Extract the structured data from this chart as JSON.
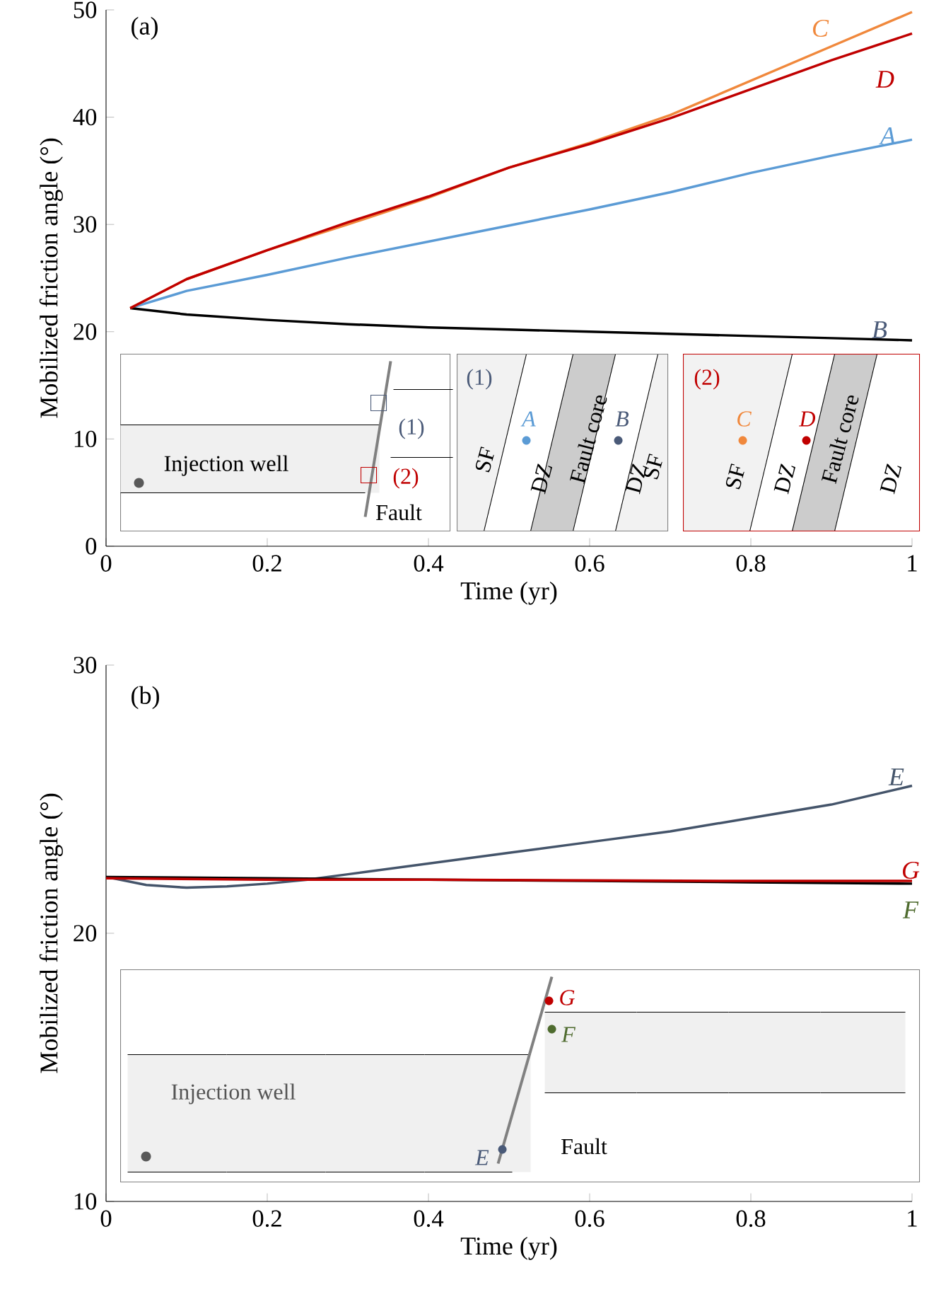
{
  "chart_data": [
    {
      "type": "line",
      "title": "(a)",
      "xlabel": "Time (yr)",
      "ylabel": "Mobilized friction angle (°)",
      "xlim": [
        0,
        1
      ],
      "ylim": [
        0,
        50
      ],
      "xticks": [
        0,
        0.2,
        0.4,
        0.6,
        0.8,
        1
      ],
      "yticks": [
        0,
        10,
        20,
        30,
        40,
        50
      ],
      "series": [
        {
          "name": "A",
          "color": "#5b9bd5",
          "x": [
            0.03,
            0.1,
            0.2,
            0.3,
            0.4,
            0.5,
            0.6,
            0.7,
            0.8,
            0.9,
            1.0
          ],
          "values": [
            22.2,
            23.8,
            25.3,
            26.9,
            28.4,
            29.9,
            31.4,
            33,
            34.8,
            36.4,
            37.9
          ]
        },
        {
          "name": "B",
          "color": "#000000",
          "x": [
            0.03,
            0.1,
            0.2,
            0.3,
            0.4,
            0.5,
            0.6,
            0.7,
            0.8,
            0.9,
            1.0
          ],
          "values": [
            22.2,
            21.6,
            21.1,
            20.7,
            20.4,
            20.2,
            20.0,
            19.8,
            19.6,
            19.4,
            19.2
          ]
        },
        {
          "name": "C",
          "color": "#f0883c",
          "x": [
            0.03,
            0.1,
            0.2,
            0.3,
            0.4,
            0.5,
            0.6,
            0.7,
            0.8,
            0.9,
            1.0
          ],
          "values": [
            22.2,
            24.9,
            27.6,
            30,
            32.5,
            35.3,
            37.6,
            40.2,
            43.4,
            46.6,
            49.8
          ]
        },
        {
          "name": "D",
          "color": "#c00000",
          "x": [
            0.03,
            0.1,
            0.2,
            0.3,
            0.4,
            0.5,
            0.6,
            0.7,
            0.8,
            0.9,
            1.0
          ],
          "values": [
            22.2,
            24.9,
            27.6,
            30.2,
            32.6,
            35.3,
            37.5,
            39.9,
            42.6,
            45.3,
            47.8
          ]
        }
      ],
      "annotations": [
        "(1)",
        "Injection well",
        "Fault",
        "(2)",
        "(1)",
        "SF",
        "DZ",
        "Fault core",
        "DZ",
        "SF",
        "(2)",
        "SF",
        "DZ",
        "Fault core",
        "DZ",
        "A",
        "B",
        "C",
        "D"
      ]
    },
    {
      "type": "line",
      "title": "(b)",
      "xlabel": "Time (yr)",
      "ylabel": "Mobilized friction angle (°)",
      "xlim": [
        0,
        1
      ],
      "ylim": [
        10,
        30
      ],
      "xticks": [
        0,
        0.2,
        0.4,
        0.6,
        0.8,
        1
      ],
      "yticks": [
        10,
        20,
        30
      ],
      "series": [
        {
          "name": "E",
          "color": "#44546a",
          "x": [
            0,
            0.05,
            0.1,
            0.15,
            0.2,
            0.25,
            0.3,
            0.4,
            0.5,
            0.6,
            0.7,
            0.8,
            0.9,
            1.0
          ],
          "values": [
            22.1,
            21.8,
            21.7,
            21.75,
            21.85,
            22.0,
            22.2,
            22.6,
            23.0,
            23.4,
            23.8,
            24.3,
            24.8,
            25.5
          ]
        },
        {
          "name": "F",
          "color": "#000000",
          "x": [
            0,
            0.2,
            0.4,
            0.6,
            0.8,
            1.0
          ],
          "values": [
            22.1,
            22.05,
            22.0,
            21.95,
            21.9,
            21.85
          ]
        },
        {
          "name": "G",
          "color": "#c00000",
          "x": [
            0,
            0.2,
            0.4,
            0.6,
            0.8,
            1.0
          ],
          "values": [
            22.05,
            22.0,
            22.0,
            21.97,
            21.95,
            21.95
          ]
        }
      ],
      "annotations": [
        "Injection well",
        "Fault",
        "E",
        "G",
        "F"
      ]
    }
  ]
}
